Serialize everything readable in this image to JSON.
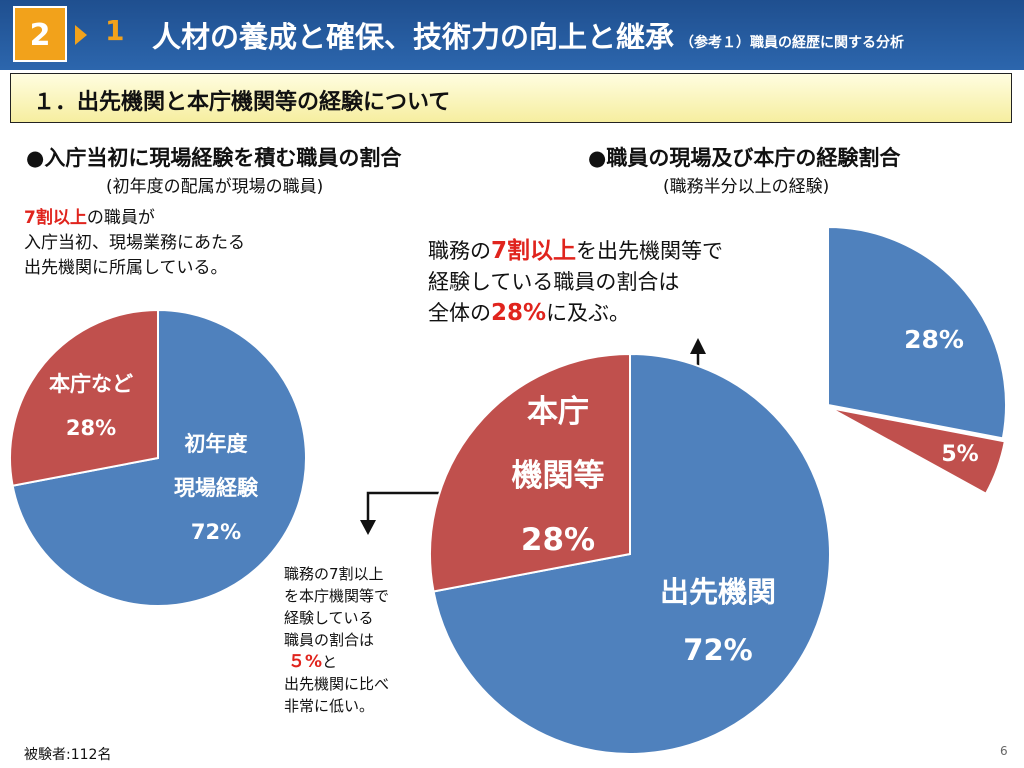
{
  "header": {
    "section_number": "2",
    "subsection_number": "1",
    "title": "人材の養成と確保、技術力の向上と継承",
    "subtitle": "（参考１）職員の経歴に関する分析"
  },
  "banner": {
    "text": "１．出先機関と本庁機関等の経験について"
  },
  "left": {
    "heading": "●入庁当初に現場経験を積む職員の割合",
    "subheading": "(初年度の配属が現場の職員)",
    "note_red": "7割以上",
    "note_line1_rest": "の職員が",
    "note_line2": "入庁当初、現場業務にあたる",
    "note_line3": "出先機関に所属している。"
  },
  "right": {
    "heading": "●職員の現場及び本庁の経験割合",
    "subheading": "(職務半分以上の経験)",
    "note_a": "職務の",
    "note_red1": "7割以上",
    "note_b": "を出先機関等で",
    "note_line2": "経験している職員の割合は",
    "note_c": "全体の",
    "note_red2": "28%",
    "note_d": "に及ぶ。"
  },
  "bottom_note": {
    "line1": "職務の7割以上",
    "line2": "を本庁機関等で",
    "line3": "経験している",
    "line4": "職員の割合は",
    "red": "５%",
    "red_suffix": "と",
    "line6": "出先機関に比べ",
    "line7": "非常に低い。"
  },
  "footer": {
    "sample": "被験者:112名",
    "page_number": "6"
  },
  "colors": {
    "blue": "#4f81bd",
    "red": "#c0504d",
    "header_blue": "#2c66ad",
    "orange": "#f2a21b",
    "alert_red": "#e0241d"
  },
  "chart_data": [
    {
      "type": "pie",
      "categories": [
        "初年度現場経験",
        "本庁など"
      ],
      "values": [
        72,
        28
      ],
      "labels": [
        [
          "初年度",
          "現場経験",
          "72%"
        ],
        [
          "本庁など",
          "28%"
        ]
      ]
    },
    {
      "type": "pie",
      "categories": [
        "出先機関",
        "本庁機関等"
      ],
      "values": [
        72,
        28
      ],
      "labels": [
        [
          "出先機関",
          "72%"
        ],
        [
          "本庁",
          "機関等",
          "28%"
        ]
      ]
    },
    {
      "type": "pie",
      "categories": [
        "28%",
        "5%"
      ],
      "values": [
        28,
        5
      ],
      "labels": [
        [
          "28%"
        ],
        [
          "5%"
        ]
      ]
    }
  ]
}
